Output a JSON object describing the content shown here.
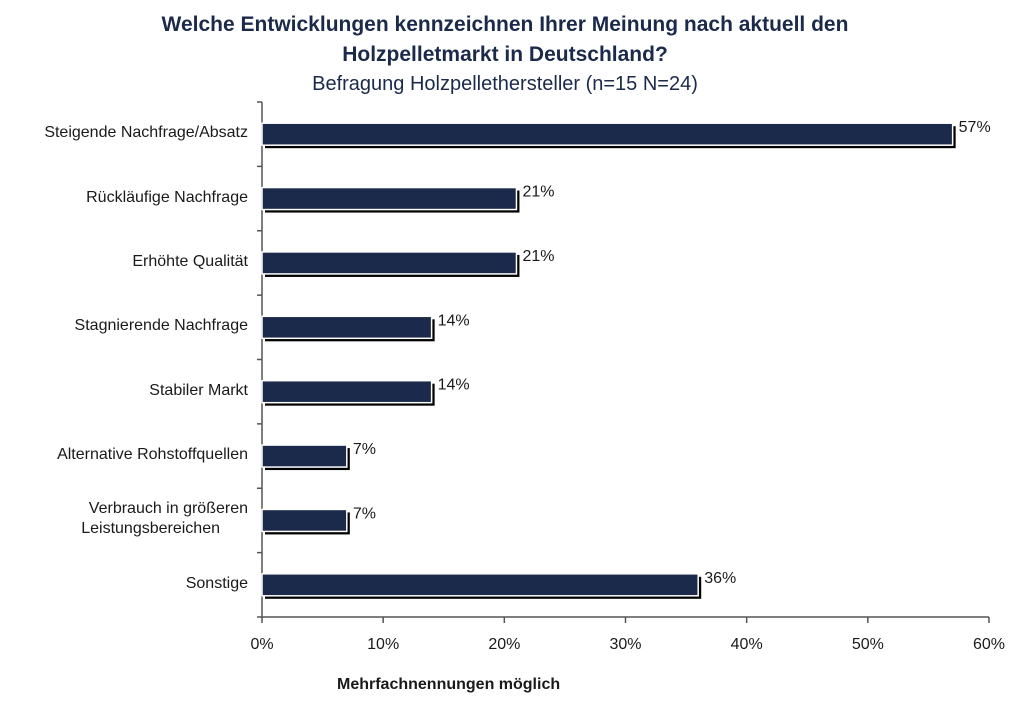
{
  "chart_data": {
    "type": "bar",
    "orientation": "horizontal",
    "title": "Welche Entwicklungen kennzeichnen Ihrer Meinung nach aktuell den Holzpelletmarkt in Deutschland?",
    "title_lines": [
      "Welche Entwicklungen kennzeichnen Ihrer Meinung nach aktuell den",
      "Holzpelletmarkt in Deutschland?"
    ],
    "subtitle": "Befragung Holzpellethersteller (n=15 N=24)",
    "xlabel": "Mehrfachnennungen möglich",
    "ylabel": "",
    "categories": [
      [
        "Steigende Nachfrage/Absatz"
      ],
      [
        "Rückläufige Nachfrage"
      ],
      [
        "Erhöhte Qualität"
      ],
      [
        "Stagnierende Nachfrage"
      ],
      [
        "Stabiler Markt"
      ],
      [
        "Alternative Rohstoffquellen"
      ],
      [
        "Verbrauch in größeren",
        "Leistungsbereichen"
      ],
      [
        "Sonstige"
      ]
    ],
    "values": [
      57,
      21,
      21,
      14,
      14,
      7,
      7,
      36
    ],
    "value_labels": [
      "57%",
      "21%",
      "21%",
      "14%",
      "14%",
      "7%",
      "7%",
      "36%"
    ],
    "xlim": [
      0,
      60
    ],
    "xticks": [
      0,
      10,
      20,
      30,
      40,
      50,
      60
    ],
    "xtick_labels": [
      "0%",
      "10%",
      "20%",
      "30%",
      "40%",
      "50%",
      "60%"
    ],
    "grid": false,
    "bar_color": "#1b2a4a",
    "shadow_color": "#000000"
  }
}
